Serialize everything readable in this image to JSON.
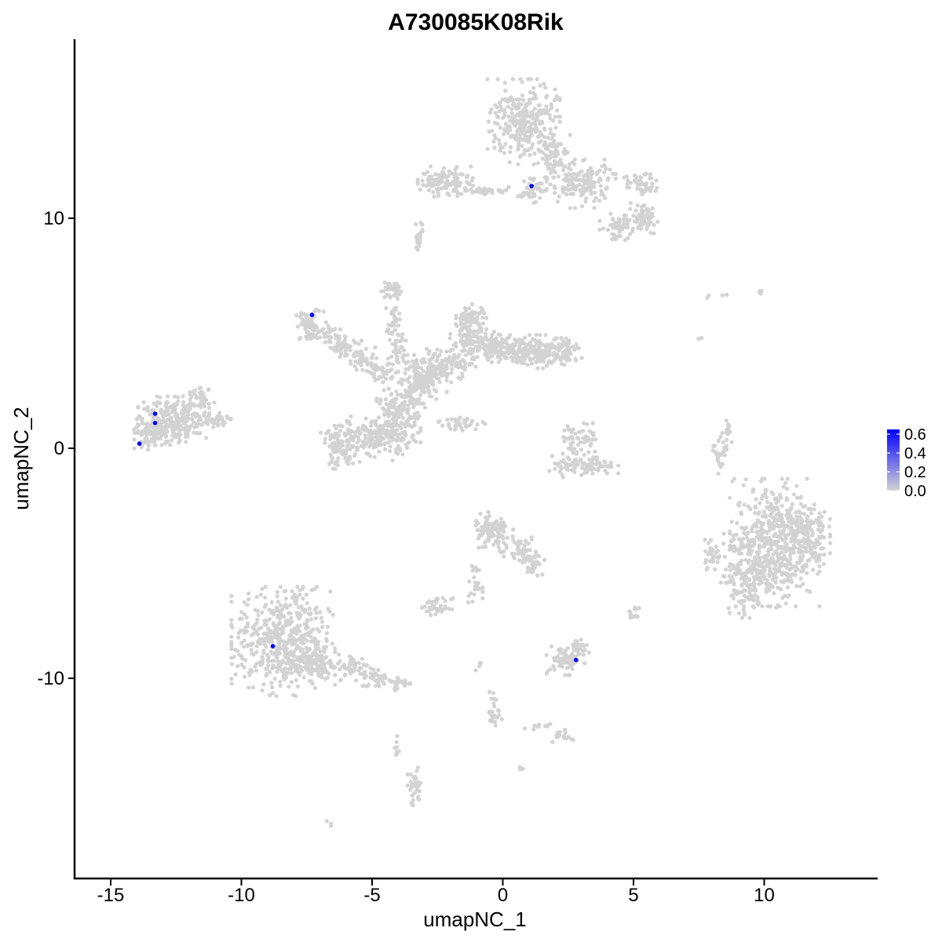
{
  "chart_data": {
    "type": "scatter",
    "title": "A730085K08Rik",
    "xlabel": "umapNC_1",
    "ylabel": "umapNC_2",
    "xlim": [
      -16.4,
      14.3
    ],
    "ylim": [
      -18.5,
      17.8
    ],
    "x_ticks": [
      -15,
      -10,
      -5,
      0,
      5,
      10
    ],
    "x_tick_labels": [
      "-15",
      "-10",
      "-5",
      "0",
      "5",
      "10"
    ],
    "y_ticks": [
      10,
      0,
      -10
    ],
    "y_tick_labels": [
      "10",
      "0",
      "-10"
    ],
    "grid": false,
    "legend": {
      "type": "colorbar",
      "placement": "right",
      "low_color": "#d3d3d3",
      "high_color": "#0000ff",
      "range": [
        0,
        0.65
      ],
      "tick_labels": [
        "0.6",
        "0.4",
        "0.2",
        "0.0"
      ],
      "tick_values": [
        0.6,
        0.4,
        0.2,
        0.0
      ]
    },
    "background_color": "#d3d3d3",
    "expressing_color": "#0000ff",
    "clusters": [
      {
        "cx": -7.4,
        "cy": 5.3,
        "rx": 0.45,
        "ry": 0.55,
        "n": 60
      },
      {
        "cx": -6.7,
        "cy": 4.9,
        "rx": 0.5,
        "ry": 0.45,
        "n": 40
      },
      {
        "cx": -6.0,
        "cy": 4.4,
        "rx": 0.45,
        "ry": 0.4,
        "n": 40
      },
      {
        "cx": -5.3,
        "cy": 3.9,
        "rx": 0.5,
        "ry": 0.4,
        "n": 40
      },
      {
        "cx": -4.6,
        "cy": 3.4,
        "rx": 0.5,
        "ry": 0.45,
        "n": 40
      },
      {
        "cx": -4.3,
        "cy": 6.9,
        "rx": 0.3,
        "ry": 0.35,
        "n": 35
      },
      {
        "cx": -4.2,
        "cy": 5.5,
        "rx": 0.2,
        "ry": 0.6,
        "n": 30
      },
      {
        "cx": -4.0,
        "cy": 4.3,
        "rx": 0.25,
        "ry": 0.55,
        "n": 30
      },
      {
        "cx": -3.2,
        "cy": 3.0,
        "rx": 0.8,
        "ry": 0.8,
        "n": 160
      },
      {
        "cx": -2.2,
        "cy": 3.6,
        "rx": 0.7,
        "ry": 0.55,
        "n": 100
      },
      {
        "cx": -1.3,
        "cy": 4.6,
        "rx": 0.55,
        "ry": 0.8,
        "n": 110
      },
      {
        "cx": -1.2,
        "cy": 5.7,
        "rx": 0.45,
        "ry": 0.45,
        "n": 60
      },
      {
        "cx": -0.3,
        "cy": 4.4,
        "rx": 0.6,
        "ry": 0.5,
        "n": 80
      },
      {
        "cx": 0.6,
        "cy": 4.3,
        "rx": 0.6,
        "ry": 0.5,
        "n": 80
      },
      {
        "cx": 1.5,
        "cy": 4.2,
        "rx": 0.7,
        "ry": 0.55,
        "n": 110
      },
      {
        "cx": 2.3,
        "cy": 4.2,
        "rx": 0.55,
        "ry": 0.45,
        "n": 70
      },
      {
        "cx": -3.9,
        "cy": 1.8,
        "rx": 0.7,
        "ry": 0.7,
        "n": 110
      },
      {
        "cx": -4.2,
        "cy": 0.6,
        "rx": 0.8,
        "ry": 0.7,
        "n": 130
      },
      {
        "cx": -5.4,
        "cy": 0.4,
        "rx": 0.9,
        "ry": 0.75,
        "n": 130
      },
      {
        "cx": -6.3,
        "cy": 0.0,
        "rx": 0.5,
        "ry": 0.75,
        "n": 70
      },
      {
        "cx": -1.6,
        "cy": 1.1,
        "rx": 0.7,
        "ry": 0.25,
        "n": 35
      },
      {
        "cx": -12.5,
        "cy": 1.2,
        "rx": 1.1,
        "ry": 0.8,
        "n": 260
      },
      {
        "cx": -13.6,
        "cy": 0.6,
        "rx": 0.6,
        "ry": 0.5,
        "n": 70
      },
      {
        "cx": -11.5,
        "cy": 2.3,
        "rx": 0.35,
        "ry": 0.45,
        "n": 35
      },
      {
        "cx": -11.0,
        "cy": 1.3,
        "rx": 0.45,
        "ry": 0.25,
        "n": 35
      },
      {
        "cx": 0.8,
        "cy": 14.2,
        "rx": 1.05,
        "ry": 1.4,
        "n": 290
      },
      {
        "cx": 3.0,
        "cy": 11.5,
        "rx": 1.0,
        "ry": 0.8,
        "n": 150
      },
      {
        "cx": 2.0,
        "cy": 12.7,
        "rx": 0.5,
        "ry": 0.7,
        "n": 70
      },
      {
        "cx": 4.5,
        "cy": 9.6,
        "rx": 0.6,
        "ry": 0.45,
        "n": 70
      },
      {
        "cx": 5.4,
        "cy": 10.0,
        "rx": 0.4,
        "ry": 0.5,
        "n": 60
      },
      {
        "cx": 5.3,
        "cy": 11.5,
        "rx": 0.5,
        "ry": 0.4,
        "n": 50
      },
      {
        "cx": 1.1,
        "cy": 11.2,
        "rx": 0.4,
        "ry": 0.4,
        "n": 40
      },
      {
        "cx": -2.2,
        "cy": 11.6,
        "rx": 0.8,
        "ry": 0.5,
        "n": 110
      },
      {
        "cx": -0.7,
        "cy": 11.2,
        "rx": 0.8,
        "ry": 0.12,
        "n": 40
      },
      {
        "cx": -3.2,
        "cy": 9.2,
        "rx": 0.15,
        "ry": 0.6,
        "n": 20
      },
      {
        "cx": -8.4,
        "cy": -8.4,
        "rx": 1.5,
        "ry": 1.8,
        "n": 520
      },
      {
        "cx": -7.2,
        "cy": -9.4,
        "rx": 0.6,
        "ry": 0.55,
        "n": 90
      },
      {
        "cx": -5.7,
        "cy": -9.5,
        "rx": 0.5,
        "ry": 0.45,
        "n": 50
      },
      {
        "cx": -4.8,
        "cy": -10.0,
        "rx": 0.5,
        "ry": 0.35,
        "n": 40
      },
      {
        "cx": -3.9,
        "cy": -10.2,
        "rx": 0.35,
        "ry": 0.25,
        "n": 25
      },
      {
        "cx": 10.4,
        "cy": -4.1,
        "rx": 1.3,
        "ry": 2.1,
        "n": 500
      },
      {
        "cx": 9.4,
        "cy": -5.4,
        "rx": 0.8,
        "ry": 1.5,
        "n": 190
      },
      {
        "cx": 11.6,
        "cy": -3.7,
        "rx": 0.7,
        "ry": 1.2,
        "n": 120
      },
      {
        "cx": 8.0,
        "cy": -4.6,
        "rx": 0.3,
        "ry": 0.5,
        "n": 30
      },
      {
        "cx": 3.1,
        "cy": -0.8,
        "rx": 1.0,
        "ry": 0.35,
        "n": 90
      },
      {
        "cx": 3.2,
        "cy": 0.3,
        "rx": 0.5,
        "ry": 0.6,
        "n": 45
      },
      {
        "cx": 2.6,
        "cy": 0.3,
        "rx": 0.3,
        "ry": 0.5,
        "n": 20
      },
      {
        "cx": -0.4,
        "cy": -3.7,
        "rx": 0.6,
        "ry": 0.7,
        "n": 110
      },
      {
        "cx": 0.7,
        "cy": -4.4,
        "rx": 0.5,
        "ry": 0.45,
        "n": 50
      },
      {
        "cx": 1.2,
        "cy": -5.0,
        "rx": 0.3,
        "ry": 0.4,
        "n": 25
      },
      {
        "cx": -1.1,
        "cy": -5.9,
        "rx": 0.25,
        "ry": 0.6,
        "n": 25
      },
      {
        "cx": -2.5,
        "cy": -6.9,
        "rx": 0.45,
        "ry": 0.3,
        "n": 40
      },
      {
        "cx": 2.4,
        "cy": -9.2,
        "rx": 0.55,
        "ry": 0.5,
        "n": 70
      },
      {
        "cx": 2.9,
        "cy": -8.7,
        "rx": 0.3,
        "ry": 0.4,
        "n": 25
      },
      {
        "cx": 5.0,
        "cy": -7.2,
        "rx": 0.2,
        "ry": 0.3,
        "n": 15
      },
      {
        "cx": 8.3,
        "cy": -0.3,
        "rx": 0.2,
        "ry": 0.8,
        "n": 30
      },
      {
        "cx": 8.6,
        "cy": 0.8,
        "rx": 0.12,
        "ry": 0.4,
        "n": 12
      },
      {
        "cx": -3.4,
        "cy": -14.8,
        "rx": 0.25,
        "ry": 0.7,
        "n": 35
      },
      {
        "cx": -0.3,
        "cy": -11.4,
        "rx": 0.2,
        "ry": 0.7,
        "n": 25
      },
      {
        "cx": 2.3,
        "cy": -12.5,
        "rx": 0.3,
        "ry": 0.2,
        "n": 18
      },
      {
        "cx": -4.0,
        "cy": -13.3,
        "rx": 0.1,
        "ry": 0.6,
        "n": 8
      },
      {
        "cx": -6.6,
        "cy": -16.3,
        "rx": 0.1,
        "ry": 0.1,
        "n": 3
      },
      {
        "cx": 0.7,
        "cy": -13.9,
        "rx": 0.1,
        "ry": 0.1,
        "n": 3
      },
      {
        "cx": 1.5,
        "cy": -12.1,
        "rx": 0.5,
        "ry": 0.15,
        "n": 10
      },
      {
        "cx": -0.9,
        "cy": -9.3,
        "rx": 0.1,
        "ry": 0.5,
        "n": 5
      },
      {
        "cx": 7.8,
        "cy": 6.6,
        "rx": 0.1,
        "ry": 0.1,
        "n": 2
      },
      {
        "cx": 9.8,
        "cy": 6.8,
        "rx": 0.2,
        "ry": 0.15,
        "n": 6
      },
      {
        "cx": 7.6,
        "cy": 4.8,
        "rx": 0.1,
        "ry": 0.1,
        "n": 3
      },
      {
        "cx": 8.5,
        "cy": 6.7,
        "rx": 0.1,
        "ry": 0.1,
        "n": 2
      }
    ],
    "expressing_points": [
      {
        "x": 1.1,
        "y": 11.4,
        "value": 0.62
      },
      {
        "x": -7.3,
        "y": 5.8,
        "value": 0.62
      },
      {
        "x": -13.3,
        "y": 1.5,
        "value": 0.62
      },
      {
        "x": -13.3,
        "y": 1.1,
        "value": 0.62
      },
      {
        "x": -13.9,
        "y": 0.2,
        "value": 0.62
      },
      {
        "x": -8.8,
        "y": -8.6,
        "value": 0.62
      },
      {
        "x": 2.8,
        "y": -9.2,
        "value": 0.62
      }
    ]
  }
}
